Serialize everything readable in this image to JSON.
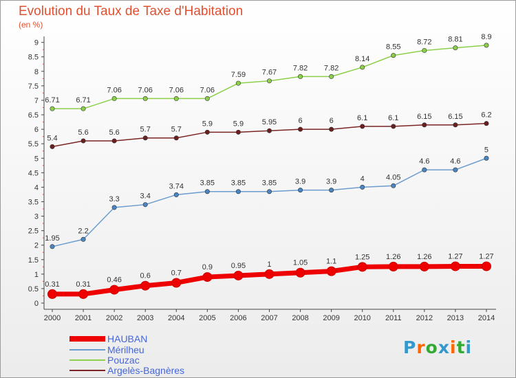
{
  "title": "Evolution du Taux de Taxe d'Habitation",
  "subtitle": "(en %)",
  "logo": {
    "text": "Proxiti",
    "colors": [
      "#3399cc",
      "#ff6600",
      "#33aa33",
      "#3399cc",
      "#ff6600",
      "#33aa33",
      "#3399cc"
    ]
  },
  "chart_data": {
    "type": "line",
    "x": [
      "2000",
      "2001",
      "2002",
      "2003",
      "2004",
      "2005",
      "2006",
      "2007",
      "2008",
      "2009",
      "2010",
      "2011",
      "2012",
      "2013",
      "2014"
    ],
    "ylim": [
      0,
      9.2
    ],
    "y_ticks": [
      "0",
      "0.5",
      "1",
      "1.5",
      "2",
      "2.5",
      "3",
      "3.5",
      "4",
      "4.5",
      "5",
      "5.5",
      "6",
      "6.5",
      "7",
      "7.5",
      "8",
      "8.5",
      "9"
    ],
    "grid": false,
    "legend_position": "bottom-left",
    "series": [
      {
        "name": "HAUBAN",
        "color": "#ee0000",
        "marker": "#ee0000",
        "values": [
          0.31,
          0.31,
          0.46,
          0.6,
          0.7,
          0.9,
          0.95,
          1,
          1.05,
          1.1,
          1.25,
          1.26,
          1.26,
          1.27,
          1.27
        ],
        "labels": [
          "0.31",
          "0.31",
          "0.46",
          "0.6",
          "0.7",
          "0.9",
          "0.95",
          "1",
          "1.05",
          "1.1",
          "1.25",
          "1.26",
          "1.26",
          "1.27",
          "1.27"
        ]
      },
      {
        "name": "Mérilheu",
        "color": "#6b9ccf",
        "marker": "#4a86c4",
        "values": [
          1.95,
          2.2,
          3.3,
          3.4,
          3.74,
          3.85,
          3.85,
          3.85,
          3.9,
          3.9,
          4,
          4.05,
          4.6,
          4.6,
          5
        ],
        "labels": [
          "1.95",
          "2.2",
          "3.3",
          "3.4",
          "3.74",
          "3.85",
          "3.85",
          "3.85",
          "3.9",
          "3.9",
          "4",
          "4.05",
          "4.6",
          "4.6",
          "5"
        ]
      },
      {
        "name": "Pouzac",
        "color": "#8ccf4a",
        "marker": "#8ccf4a",
        "values": [
          6.71,
          6.71,
          7.06,
          7.06,
          7.06,
          7.06,
          7.59,
          7.67,
          7.82,
          7.82,
          8.14,
          8.55,
          8.72,
          8.81,
          8.9
        ],
        "labels": [
          "6.71",
          "6.71",
          "7.06",
          "7.06",
          "7.06",
          "7.06",
          "7.59",
          "7.67",
          "7.82",
          "7.82",
          "8.14",
          "8.55",
          "8.72",
          "8.81",
          "8.9"
        ]
      },
      {
        "name": "Argelès-Bagnères",
        "color": "#7a2424",
        "marker": "#6b1f1f",
        "values": [
          5.4,
          5.6,
          5.6,
          5.7,
          5.7,
          5.9,
          5.9,
          5.95,
          6,
          6,
          6.1,
          6.1,
          6.15,
          6.15,
          6.2
        ],
        "labels": [
          "5.4",
          "5.6",
          "5.6",
          "5.7",
          "5.7",
          "5.9",
          "5.9",
          "5.95",
          "6",
          "6",
          "6.1",
          "6.1",
          "6.15",
          "6.15",
          "6.2"
        ]
      }
    ]
  }
}
